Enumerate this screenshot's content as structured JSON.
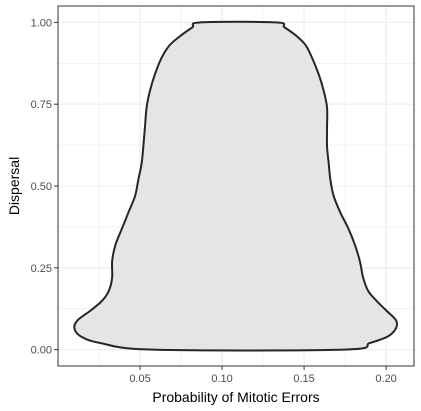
{
  "chart_data": {
    "type": "area",
    "subtype": "violin",
    "title": "",
    "xlabel": "Probability of Mitotic Errors",
    "ylabel": "Dispersal",
    "xlim": [
      0.0,
      0.217
    ],
    "ylim": [
      -0.05,
      1.05
    ],
    "grid": true,
    "legend": "none",
    "x_ticks": [
      0.05,
      0.1,
      0.15,
      0.2
    ],
    "x_tick_labels": [
      "0.05",
      "0.10",
      "0.15",
      "0.20"
    ],
    "y_ticks": [
      0.0,
      0.25,
      0.5,
      0.75,
      1.0
    ],
    "y_tick_labels": [
      "0.00",
      "0.25",
      "0.50",
      "0.75",
      "1.00"
    ],
    "outline": [
      {
        "y": 0.0,
        "left": 0.058,
        "right": 0.174
      },
      {
        "y": 0.02,
        "left": 0.026,
        "right": 0.19
      },
      {
        "y": 0.04,
        "left": 0.014,
        "right": 0.201
      },
      {
        "y": 0.065,
        "left": 0.01,
        "right": 0.206
      },
      {
        "y": 0.09,
        "left": 0.012,
        "right": 0.206
      },
      {
        "y": 0.12,
        "left": 0.02,
        "right": 0.2
      },
      {
        "y": 0.15,
        "left": 0.027,
        "right": 0.194
      },
      {
        "y": 0.18,
        "left": 0.031,
        "right": 0.189
      },
      {
        "y": 0.22,
        "left": 0.033,
        "right": 0.186
      },
      {
        "y": 0.27,
        "left": 0.033,
        "right": 0.184
      },
      {
        "y": 0.32,
        "left": 0.035,
        "right": 0.181
      },
      {
        "y": 0.37,
        "left": 0.039,
        "right": 0.177
      },
      {
        "y": 0.42,
        "left": 0.043,
        "right": 0.172
      },
      {
        "y": 0.47,
        "left": 0.047,
        "right": 0.168
      },
      {
        "y": 0.52,
        "left": 0.049,
        "right": 0.166
      },
      {
        "y": 0.57,
        "left": 0.051,
        "right": 0.165
      },
      {
        "y": 0.62,
        "left": 0.052,
        "right": 0.164
      },
      {
        "y": 0.68,
        "left": 0.053,
        "right": 0.164
      },
      {
        "y": 0.74,
        "left": 0.054,
        "right": 0.164
      },
      {
        "y": 0.79,
        "left": 0.056,
        "right": 0.162
      },
      {
        "y": 0.84,
        "left": 0.059,
        "right": 0.159
      },
      {
        "y": 0.89,
        "left": 0.063,
        "right": 0.155
      },
      {
        "y": 0.93,
        "left": 0.068,
        "right": 0.151
      },
      {
        "y": 0.96,
        "left": 0.075,
        "right": 0.145
      },
      {
        "y": 0.985,
        "left": 0.082,
        "right": 0.138
      },
      {
        "y": 1.0,
        "left": 0.087,
        "right": 0.133
      }
    ],
    "colors": {
      "fill": "#e5e5e5",
      "stroke": "#262626",
      "grid": "#ebebeb",
      "panel_border": "#333333",
      "tick_text": "#4d4d4d"
    }
  }
}
